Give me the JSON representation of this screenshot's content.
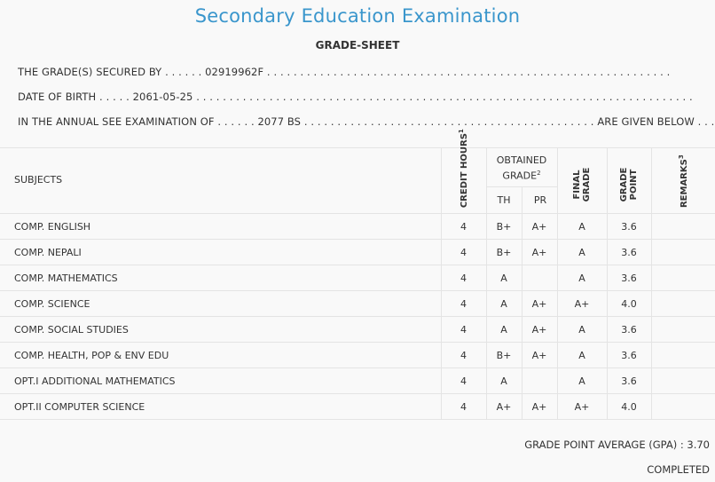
{
  "title": "Secondary Education Examination",
  "subtitle": "GRADE-SHEET",
  "info": {
    "secured_by": "THE GRADE(S) SECURED BY . . . . . . 02919962F . . . . . . . . . . . . . . . . . . . . . . . . . . . . . . . . . . . . . . . . . . . . . . . . . . . . . . . . . . . . .",
    "dob": "DATE OF BIRTH . . . . . 2061-05-25 . . . . . . . . . . . . . . . . . . . . . . . . . . . . . . . . . . . . . . . . . . . . . . . . . . . . . . . . . . . . . . . . . . . . . . . . . . .",
    "exam": "IN THE ANNUAL SEE EXAMINATION OF . . . . . . 2077 BS . . . . . . . . . . . . . . . . . . . . . . . . . . . . . . . . . . . . . . . . . . . . ARE GIVEN BELOW . . ."
  },
  "headers": {
    "subjects": "SUBJECTS",
    "credit_hours": "CREDIT HOURS",
    "credit_sup": "1",
    "obtained": "OBTAINED",
    "grade": "GRADE",
    "grade_sup": "2",
    "th": "TH",
    "pr": "PR",
    "final_grade": "FINAL GRADE",
    "grade_point": "GRADE POINT",
    "remarks": "REMARKS",
    "remarks_sup": "3"
  },
  "rows": [
    {
      "subject": "COMP. ENGLISH",
      "credit": "4",
      "th": "B+",
      "pr": "A+",
      "final": "A",
      "gp": "3.6",
      "remarks": ""
    },
    {
      "subject": "COMP. NEPALI",
      "credit": "4",
      "th": "B+",
      "pr": "A+",
      "final": "A",
      "gp": "3.6",
      "remarks": ""
    },
    {
      "subject": "COMP. MATHEMATICS",
      "credit": "4",
      "th": "A",
      "pr": "",
      "final": "A",
      "gp": "3.6",
      "remarks": ""
    },
    {
      "subject": "COMP. SCIENCE",
      "credit": "4",
      "th": "A",
      "pr": "A+",
      "final": "A+",
      "gp": "4.0",
      "remarks": ""
    },
    {
      "subject": "COMP. SOCIAL STUDIES",
      "credit": "4",
      "th": "A",
      "pr": "A+",
      "final": "A",
      "gp": "3.6",
      "remarks": ""
    },
    {
      "subject": "COMP. HEALTH, POP & ENV EDU",
      "credit": "4",
      "th": "B+",
      "pr": "A+",
      "final": "A",
      "gp": "3.6",
      "remarks": ""
    },
    {
      "subject": "OPT.I ADDITIONAL MATHEMATICS",
      "credit": "4",
      "th": "A",
      "pr": "",
      "final": "A",
      "gp": "3.6",
      "remarks": ""
    },
    {
      "subject": "OPT.II COMPUTER SCIENCE",
      "credit": "4",
      "th": "A+",
      "pr": "A+",
      "final": "A+",
      "gp": "4.0",
      "remarks": ""
    }
  ],
  "footer": {
    "gpa": "GRADE POINT AVERAGE (GPA) : 3.70",
    "status": "COMPLETED"
  }
}
